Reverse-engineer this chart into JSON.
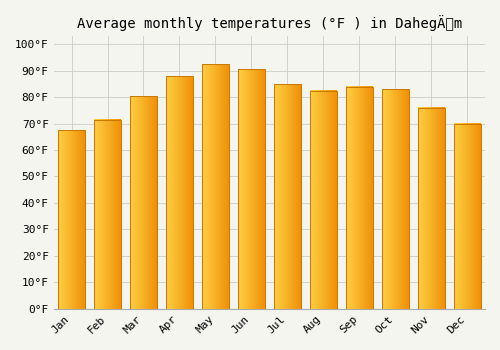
{
  "title": "Average monthly temperatures (°F ) in DahegÄm",
  "months": [
    "Jan",
    "Feb",
    "Mar",
    "Apr",
    "May",
    "Jun",
    "Jul",
    "Aug",
    "Sep",
    "Oct",
    "Nov",
    "Dec"
  ],
  "values": [
    67.5,
    71.5,
    80.5,
    88.0,
    92.5,
    90.5,
    85.0,
    82.5,
    84.0,
    83.0,
    76.0,
    70.0
  ],
  "bar_color_left": "#FFD040",
  "bar_color_right": "#F0900A",
  "bar_edge_color": "#C87800",
  "background_color": "#F5F5F0",
  "grid_color": "#CCCCCC",
  "yticks": [
    0,
    10,
    20,
    30,
    40,
    50,
    60,
    70,
    80,
    90,
    100
  ],
  "ylim": [
    0,
    103
  ],
  "title_fontsize": 10,
  "tick_fontsize": 8,
  "font_family": "monospace"
}
